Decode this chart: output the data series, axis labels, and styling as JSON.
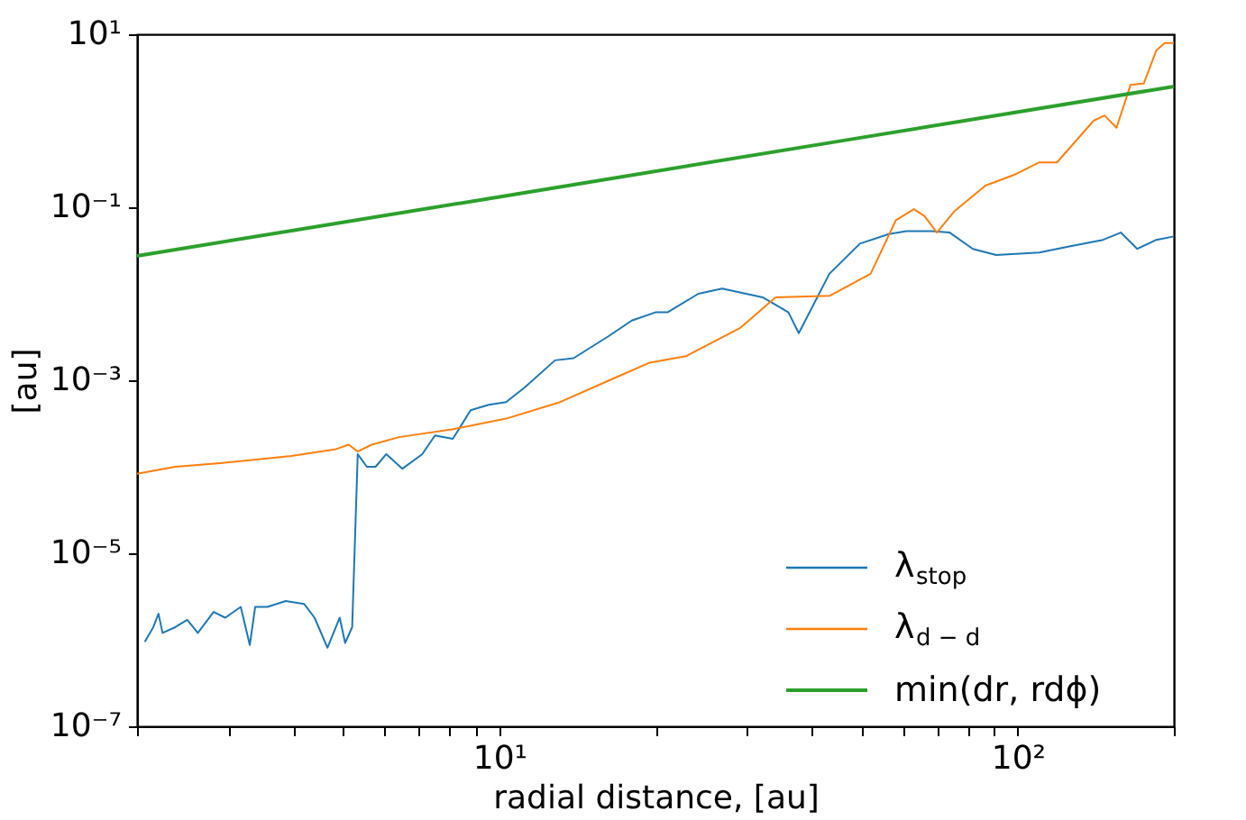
{
  "chart_data": {
    "type": "line",
    "xlabel": "radial distance, [au]",
    "ylabel": "[au]",
    "log": "xy",
    "grid": false,
    "legend": "bottom right",
    "line_style": "solid",
    "marker": "none",
    "xlim": [
      2,
      200
    ],
    "ylim": [
      1e-07,
      10
    ],
    "xticks": [
      {
        "value": 2,
        "label": null
      },
      {
        "value": 3,
        "label": null
      },
      {
        "value": 4,
        "label": null
      },
      {
        "value": 5,
        "label": null
      },
      {
        "value": 6,
        "label": null
      },
      {
        "value": 7,
        "label": null
      },
      {
        "value": 8,
        "label": null
      },
      {
        "value": 9,
        "label": null
      },
      {
        "value": 10,
        "label": "10¹"
      },
      {
        "value": 20,
        "label": null
      },
      {
        "value": 30,
        "label": null
      },
      {
        "value": 40,
        "label": null
      },
      {
        "value": 50,
        "label": null
      },
      {
        "value": 60,
        "label": null
      },
      {
        "value": 70,
        "label": null
      },
      {
        "value": 80,
        "label": null
      },
      {
        "value": 90,
        "label": null
      },
      {
        "value": 100,
        "label": "10²"
      },
      {
        "value": 200,
        "label": null
      }
    ],
    "yticks": [
      {
        "value": 1e-07,
        "label": "10⁻⁷"
      },
      {
        "value": 1e-05,
        "label": "10⁻⁵"
      },
      {
        "value": 0.001,
        "label": "10⁻³"
      },
      {
        "value": 0.1,
        "label": "10⁻¹"
      },
      {
        "value": 10,
        "label": "10¹"
      }
    ],
    "series": [
      {
        "name": "λ$_{stop}$",
        "color": "#1f77b4",
        "x": [
          2.07,
          2.15,
          2.2,
          2.24,
          2.37,
          2.5,
          2.62,
          2.81,
          2.96,
          3.17,
          3.3,
          3.38,
          3.57,
          3.87,
          4.2,
          4.4,
          4.66,
          4.92,
          5.04,
          5.2,
          5.33,
          5.55,
          5.77,
          6.05,
          6.5,
          7.1,
          7.51,
          8.13,
          8.8,
          9.53,
          10.3,
          11.2,
          12.8,
          13.9,
          16.2,
          18.0,
          20.0,
          21.1,
          24.2,
          26.9,
          32.2,
          36.1,
          37.8,
          43.3,
          49.6,
          56.4,
          61.0,
          68.2,
          73.9,
          81.9,
          90.8,
          110,
          125,
          146,
          158,
          170,
          185,
          200
        ],
        "values": [
          9.5e-07,
          1.4e-06,
          2e-06,
          1.2e-06,
          1.4e-06,
          1.7e-06,
          1.2e-06,
          2.1e-06,
          1.8e-06,
          2.4e-06,
          8.7e-07,
          2.4e-06,
          2.4e-06,
          2.8e-06,
          2.6e-06,
          1.8e-06,
          8.1e-07,
          1.8e-06,
          9.2e-07,
          1.4e-06,
          0.00014,
          0.0001,
          0.0001,
          0.00014,
          9.5e-05,
          0.00014,
          0.00023,
          0.00021,
          0.00045,
          0.00052,
          0.00056,
          0.00083,
          0.0017,
          0.0018,
          0.0032,
          0.0049,
          0.0061,
          0.0061,
          0.01,
          0.0115,
          0.0091,
          0.0061,
          0.0035,
          0.017,
          0.038,
          0.049,
          0.053,
          0.053,
          0.051,
          0.033,
          0.028,
          0.03,
          0.035,
          0.042,
          0.051,
          0.033,
          0.042,
          0.046
        ]
      },
      {
        "name": "λ$_{d − d}$",
        "color": "#ff7f0e",
        "x": [
          2.0,
          2.37,
          2.89,
          3.97,
          4.84,
          5.12,
          5.33,
          5.67,
          6.4,
          8.1,
          10.3,
          13.1,
          16.6,
          19.5,
          22.9,
          29.1,
          34.1,
          43.4,
          52.0,
          58.2,
          63.0,
          66.1,
          69.8,
          75.6,
          86.6,
          98.4,
          110,
          119,
          140,
          147,
          155,
          165,
          175,
          185,
          192,
          200
        ],
        "values": [
          8.3e-05,
          0.0001,
          0.00011,
          0.000133,
          0.00016,
          0.00018,
          0.00015,
          0.00018,
          0.00022,
          0.00027,
          0.00036,
          0.00056,
          0.00105,
          0.0016,
          0.0019,
          0.004,
          0.0091,
          0.0095,
          0.017,
          0.071,
          0.095,
          0.079,
          0.051,
          0.091,
          0.178,
          0.237,
          0.33,
          0.33,
          1.0,
          1.15,
          0.83,
          2.6,
          2.7,
          6.5,
          7.9,
          7.9
        ]
      },
      {
        "name": "min(dr, rdϕ)",
        "color": "#2ca02c",
        "x": [
          2,
          10,
          50,
          200
        ],
        "values": [
          0.0274,
          0.132,
          0.64,
          2.49
        ]
      }
    ]
  }
}
